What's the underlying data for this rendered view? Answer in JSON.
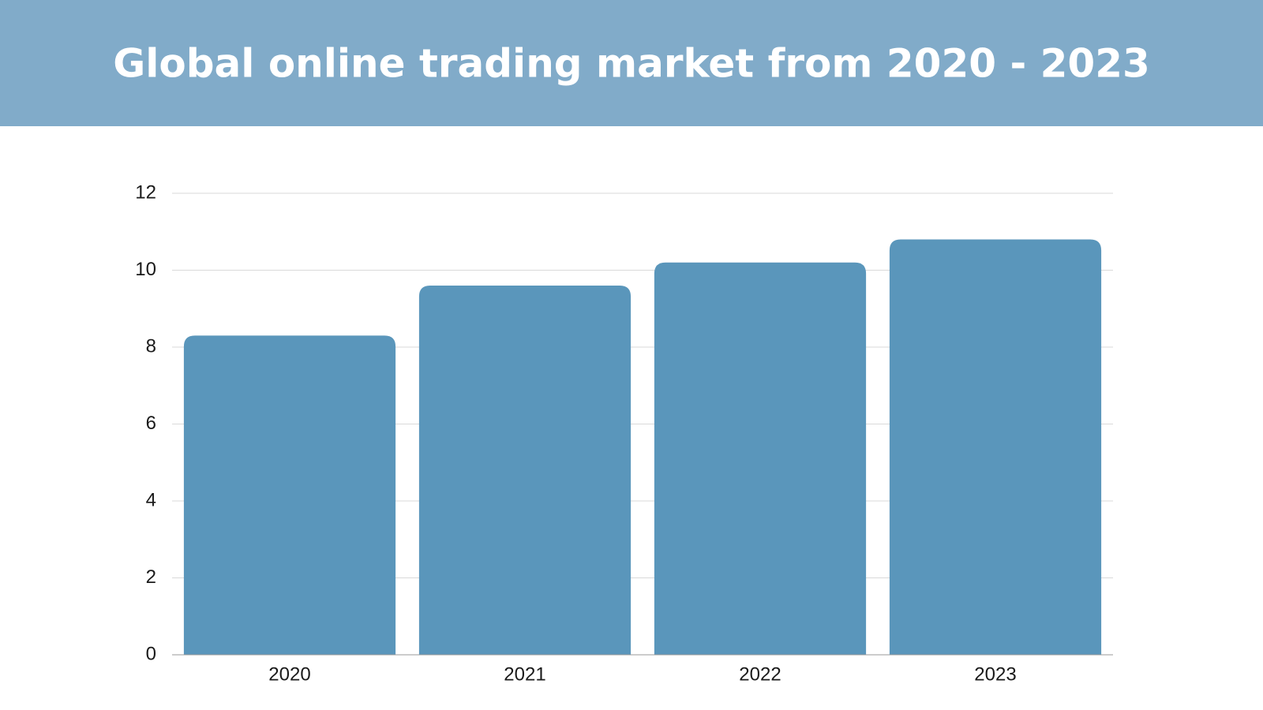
{
  "chart_data": {
    "type": "bar",
    "title": "Global online trading market from 2020 - 2023",
    "categories": [
      "2020",
      "2021",
      "2022",
      "2023"
    ],
    "values": [
      8.3,
      9.6,
      10.2,
      10.8
    ],
    "color": "#5a96bb",
    "ylim": [
      0,
      12
    ],
    "yticks": [
      0,
      2,
      4,
      6,
      8,
      10,
      12
    ],
    "grid": true
  }
}
